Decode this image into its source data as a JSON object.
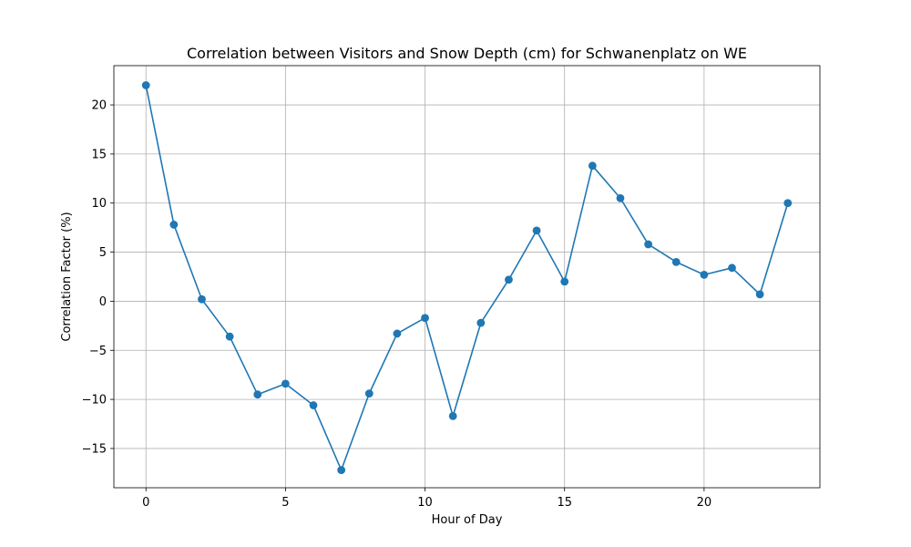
{
  "chart_data": {
    "type": "line",
    "title": "Correlation between Visitors and Snow Depth (cm) for Schwanenplatz on WE",
    "xlabel": "Hour of Day",
    "ylabel": "Correlation Factor (%)",
    "xlim": [
      -1.15,
      24.15
    ],
    "ylim": [
      -19,
      24
    ],
    "xticks": [
      0,
      5,
      10,
      15,
      20
    ],
    "yticks": [
      -15,
      -10,
      -5,
      0,
      5,
      10,
      15,
      20
    ],
    "grid": true,
    "x": [
      0,
      1,
      2,
      3,
      4,
      5,
      6,
      7,
      8,
      9,
      10,
      11,
      12,
      13,
      14,
      15,
      16,
      17,
      18,
      19,
      20,
      21,
      22,
      23
    ],
    "series": [
      {
        "color": "#1f77b4",
        "marker": "circle",
        "values": [
          22.0,
          7.8,
          0.2,
          -3.6,
          -9.5,
          -8.4,
          -10.6,
          -17.2,
          -9.4,
          -3.3,
          -1.7,
          -11.7,
          -2.2,
          2.2,
          7.2,
          2.0,
          13.8,
          10.5,
          5.8,
          4.0,
          2.7,
          3.4,
          0.7,
          10.0
        ]
      }
    ]
  }
}
